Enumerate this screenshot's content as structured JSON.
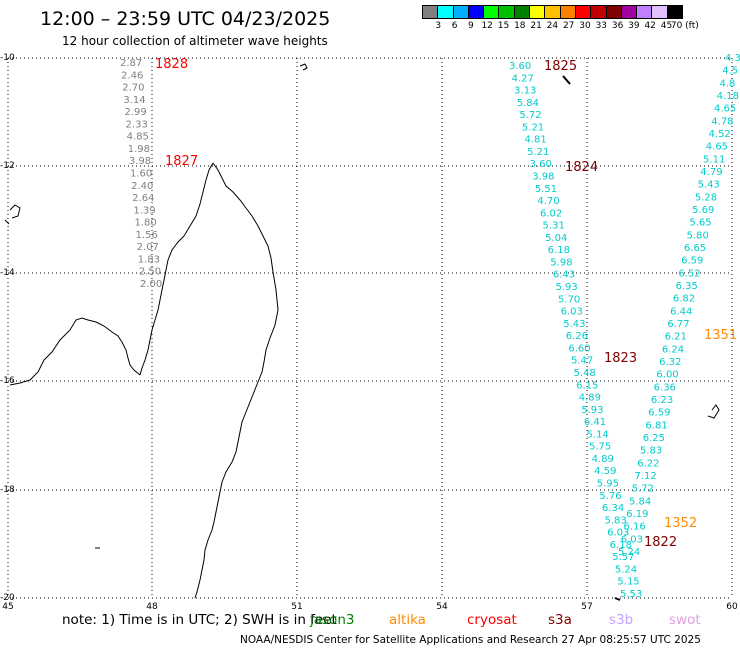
{
  "header": {
    "title": "12:00 – 23:59 UTC 04/23/2025",
    "subtitle": "12 hour collection of altimeter wave heights"
  },
  "colorbar": {
    "colors": [
      "#808080",
      "#00ffff",
      "#00b0ff",
      "#0000ff",
      "#00ff00",
      "#00c000",
      "#008000",
      "#ffff00",
      "#ffc000",
      "#ff8000",
      "#ff0000",
      "#c00000",
      "#800000",
      "#a000a0",
      "#c080ff",
      "#e0c0ff",
      "#000000"
    ],
    "labels": [
      "3",
      "6",
      "9",
      "12",
      "15",
      "18",
      "21",
      "24",
      "27",
      "30",
      "33",
      "36",
      "39",
      "42",
      "45",
      "70 (ft)"
    ]
  },
  "axes": {
    "lon_labels": [
      "45",
      "48",
      "51",
      "54",
      "57",
      "60"
    ],
    "lat_labels": [
      "-10",
      "-12",
      "-14",
      "-16",
      "-18",
      "-20"
    ]
  },
  "tracks": [
    {
      "time": "1828",
      "color": "#ff0000",
      "text_color": "#808080",
      "values": [
        "2.87",
        "2.46",
        "2.70",
        "3.14",
        "2.99",
        "2.33",
        "4.85",
        "1.98",
        "3.98",
        "1.60",
        "2.40",
        "2.64",
        "1.39",
        "1.80",
        "1.56",
        "2.07",
        "1.83",
        "2.50",
        "2.00"
      ]
    },
    {
      "time": "1827",
      "color": "#ff0000"
    },
    {
      "time": "1825",
      "color": "#800000",
      "text_color": "#00cccc",
      "values": [
        "3.60",
        "4.27",
        "3.13",
        "5.84",
        "5.72",
        "5.21",
        "4.81",
        "5.21",
        "3.60",
        "3.98",
        "5.51",
        "4.70",
        "6.02",
        "5.31",
        "5.04",
        "6.18",
        "5.98",
        "6.43",
        "5.93",
        "5.70",
        "6.03",
        "5.43",
        "6.26",
        "6.60",
        "5.47",
        "5.48",
        "6.15",
        "4.89",
        "5.93",
        "6.41",
        "5.14",
        "5.75",
        "4.89",
        "4.59",
        "5.95",
        "5.76",
        "6.34",
        "5.83",
        "6.03",
        "6.18",
        "5.57",
        "5.24",
        "5.15",
        "5.53"
      ]
    },
    {
      "time": "1824",
      "color": "#800000"
    },
    {
      "time": "1823",
      "color": "#800000"
    },
    {
      "time": "1822",
      "color": "#800000",
      "text_color": "#00cccc",
      "values": [
        "4.3",
        "4.5",
        "4.8",
        "4.18",
        "4.65",
        "4.78",
        "4.52",
        "4.65",
        "5.11",
        "4.79",
        "5.43",
        "5.28",
        "5.69",
        "5.65",
        "5.80",
        "6.65",
        "6.59",
        "6.52",
        "6.35",
        "6.82",
        "6.44",
        "6.77",
        "6.21",
        "6.24",
        "6.32",
        "6.00",
        "6.36",
        "6.23",
        "6.59",
        "6.81",
        "6.25",
        "5.83",
        "6.22",
        "7.12",
        "5.72",
        "5.84",
        "6.19",
        "6.16",
        "6.03",
        "5.24"
      ]
    },
    {
      "time": "1351",
      "color": "#ff8c00"
    },
    {
      "time": "1352",
      "color": "#ff8c00"
    }
  ],
  "footer": {
    "note": "note:  1) Time is in UTC;  2) SWH is in feet",
    "satellites": [
      {
        "name": "jason3",
        "color": "#008000"
      },
      {
        "name": "altika",
        "color": "#ff8c00"
      },
      {
        "name": "cryosat",
        "color": "#ff0000"
      },
      {
        "name": "s3a",
        "color": "#800000"
      },
      {
        "name": "s3b",
        "color": "#c8a0ff"
      },
      {
        "name": "swot",
        "color": "#e0a0e0"
      }
    ],
    "credit": "NOAA/NESDIS Center for Satellite Applications and Research    27 Apr 08:25:57 UTC 2025"
  }
}
